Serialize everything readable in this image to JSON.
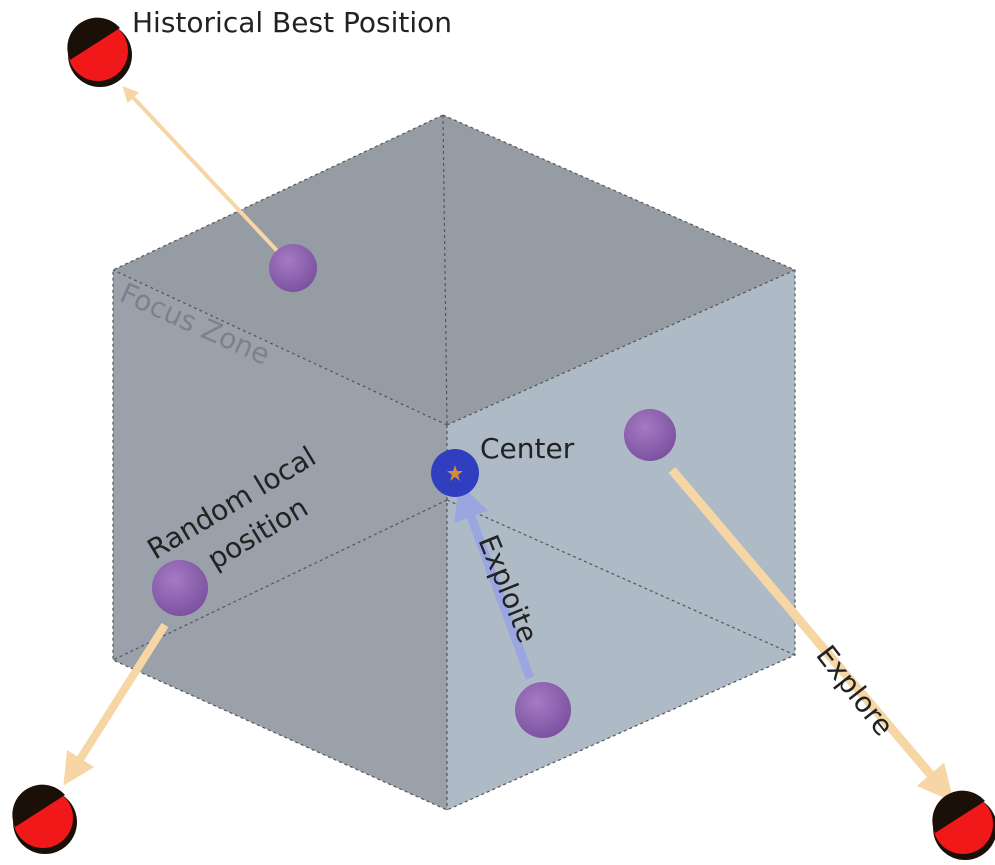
{
  "labels": {
    "historical_best": "Historical Best Position",
    "focus_zone": "Focus Zone",
    "center": "Center",
    "random_local": [
      "Random local",
      "position"
    ],
    "exploite": "Exploite",
    "explore": "Explore"
  }
}
